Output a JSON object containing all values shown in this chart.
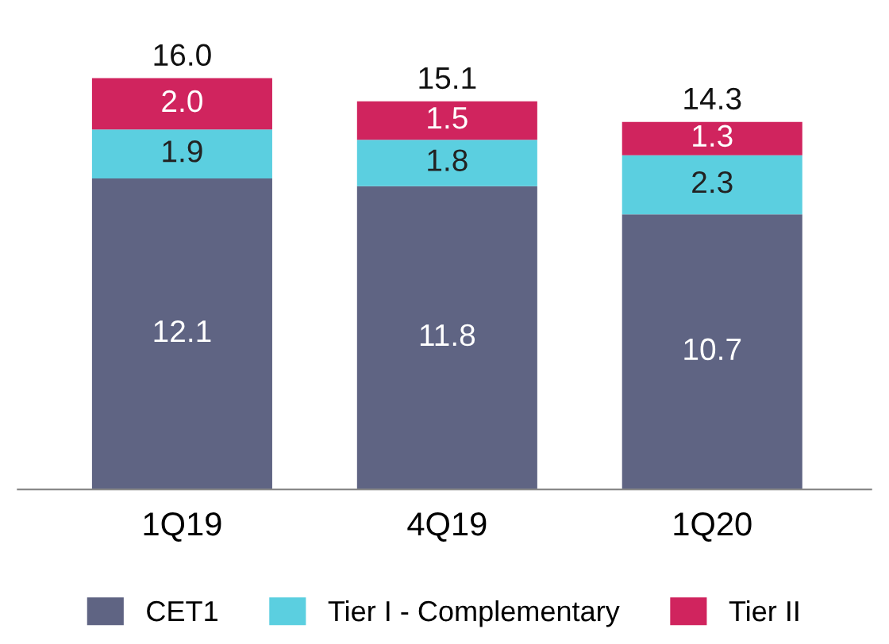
{
  "chart_data": {
    "type": "bar",
    "stacked": true,
    "legend": "bottom",
    "categories": [
      "1Q19",
      "4Q19",
      "1Q20"
    ],
    "series": [
      {
        "name": "CET1",
        "color": "#5f6483",
        "values": [
          12.1,
          11.8,
          10.7
        ],
        "value_labels": [
          "12.1",
          "11.8",
          "10.7"
        ]
      },
      {
        "name": "Tier I - Complementary",
        "color": "#5bcfe0",
        "values": [
          1.9,
          1.8,
          2.3
        ],
        "value_labels": [
          "1.9",
          "1.8",
          "2.3"
        ]
      },
      {
        "name": "Tier II",
        "color": "#d0245e",
        "values": [
          2.0,
          1.5,
          1.3
        ],
        "value_labels": [
          "2.0",
          "1.5",
          "1.3"
        ]
      }
    ],
    "totals": [
      "16.0",
      "15.1",
      "14.3"
    ]
  }
}
